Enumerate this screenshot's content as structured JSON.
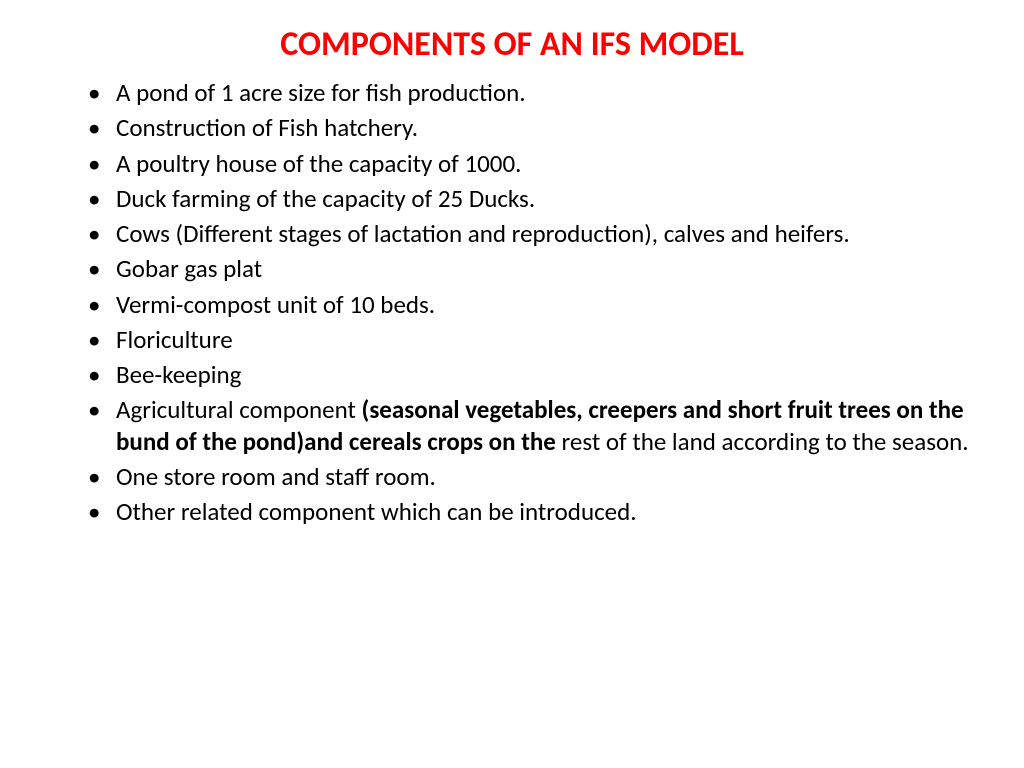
{
  "slide": {
    "title": "COMPONENTS OF AN IFS MODEL",
    "title_color": "#ff0000",
    "title_fontsize": 34,
    "body_color": "#000000",
    "body_fontsize": 25,
    "background_color": "#ffffff",
    "bullets": [
      {
        "text": "A pond of 1 acre size for fish production."
      },
      {
        "text": "Construction of Fish hatchery."
      },
      {
        "text": "A poultry house of the capacity of 1000."
      },
      {
        "text": "Duck farming of the capacity of 25 Ducks."
      },
      {
        "text": "Cows (Different stages of lactation and reproduction), calves and heifers."
      },
      {
        "text": "Gobar gas plat"
      },
      {
        "text": "Vermi-compost unit of 10 beds."
      },
      {
        "text": "Floriculture"
      },
      {
        "text": "Bee-keeping"
      },
      {
        "runs": [
          {
            "text": "Agricultural component ",
            "bold": false
          },
          {
            "text": "(seasonal vegetables, creepers and short fruit trees on the bund of the pond)and cereals crops on the ",
            "bold": true
          },
          {
            "text": "rest of the land according to the season.",
            "bold": false
          }
        ]
      },
      {
        "text": "One store room and staff room."
      },
      {
        "text": "Other related component which can be introduced."
      }
    ]
  }
}
